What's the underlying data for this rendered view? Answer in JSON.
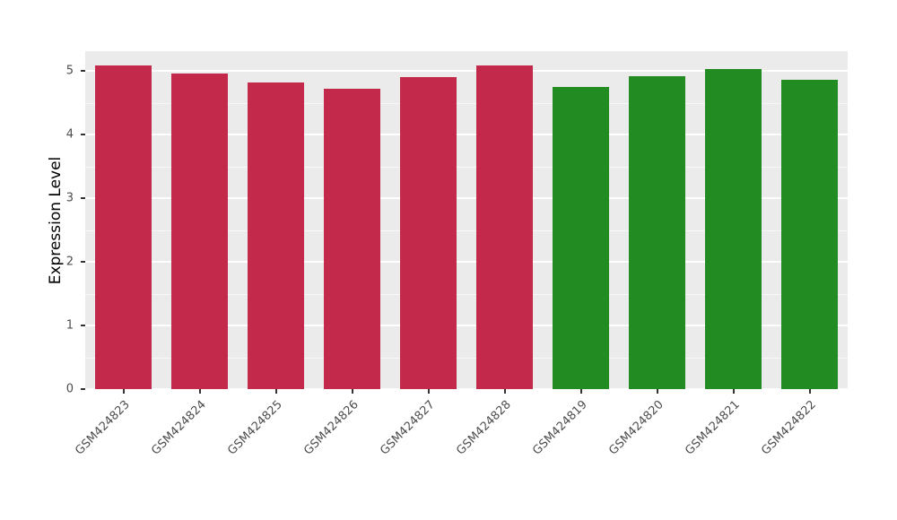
{
  "chart_data": {
    "type": "bar",
    "title": "",
    "xlabel": "",
    "ylabel": "Expression Level",
    "categories": [
      "GSM424823",
      "GSM424824",
      "GSM424825",
      "GSM424826",
      "GSM424827",
      "GSM424828",
      "GSM424819",
      "GSM424820",
      "GSM424821",
      "GSM424822"
    ],
    "values": [
      5.08,
      4.96,
      4.82,
      4.72,
      4.9,
      5.09,
      4.75,
      4.92,
      5.03,
      4.86
    ],
    "bar_colors": [
      "#C3294B",
      "#C3294B",
      "#C3294B",
      "#C3294B",
      "#C3294B",
      "#C3294B",
      "#228B22",
      "#228B22",
      "#228B22",
      "#228B22"
    ],
    "group_colors": {
      "red_group": "#C3294B",
      "green_group": "#228B22"
    },
    "ylim": [
      0,
      5.31
    ],
    "yticks": [
      0,
      1,
      2,
      3,
      4,
      5
    ],
    "grid": "on",
    "legend": "none",
    "panel_background": "#EBEBEB",
    "grid_color": "#FFFFFF",
    "axis_text_color": "#4D4D4D",
    "bar_width_fraction": 0.73
  }
}
